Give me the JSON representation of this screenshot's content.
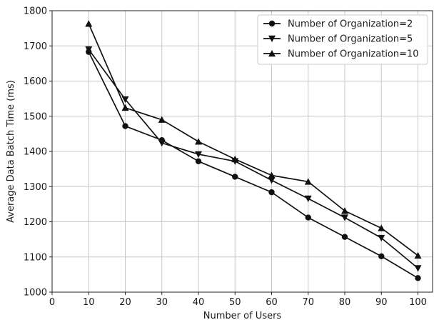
{
  "chart_data": {
    "type": "line",
    "xlabel": "Number of Users",
    "ylabel": "Average Data Batch Time (ms)",
    "xlim": [
      0,
      104
    ],
    "ylim": [
      1000,
      1800
    ],
    "xticks": [
      0,
      10,
      20,
      30,
      40,
      50,
      60,
      70,
      80,
      90,
      100
    ],
    "yticks": [
      1000,
      1100,
      1200,
      1300,
      1400,
      1500,
      1600,
      1700,
      1800
    ],
    "grid": true,
    "legend_position": "top-right",
    "x": [
      10,
      20,
      30,
      40,
      50,
      60,
      70,
      80,
      90,
      100
    ],
    "series": [
      {
        "name": "Number of Organization=2",
        "marker": "circle",
        "values": [
          1683,
          1472,
          1432,
          1372,
          1328,
          1284,
          1212,
          1157,
          1102,
          1040
        ]
      },
      {
        "name": "Number of Organization=5",
        "marker": "triangle-down",
        "values": [
          1690,
          1548,
          1424,
          1392,
          1372,
          1318,
          1266,
          1212,
          1154,
          1068
        ]
      },
      {
        "name": "Number of Organization=10",
        "marker": "triangle-up",
        "values": [
          1763,
          1524,
          1490,
          1428,
          1378,
          1332,
          1314,
          1231,
          1182,
          1104
        ]
      }
    ],
    "colors": {
      "line": "#111111",
      "grid": "#c8c8c8",
      "axis": "#222222"
    }
  }
}
